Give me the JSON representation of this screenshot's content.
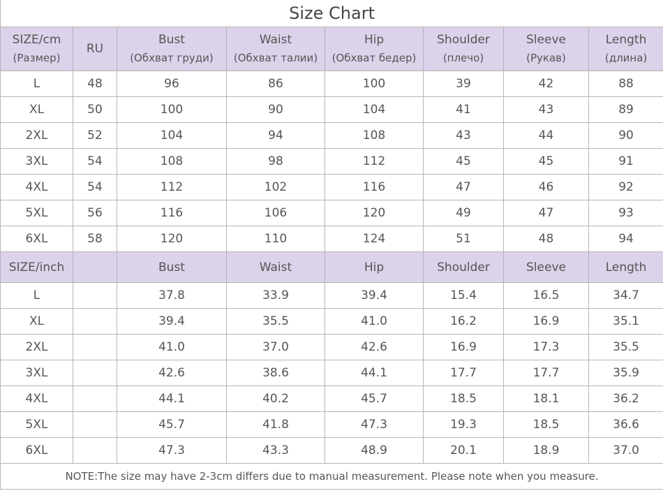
{
  "title": "Size Chart",
  "cm_table": {
    "header": [
      {
        "label": "SIZE/cm",
        "sub": "(Размер)"
      },
      {
        "label": "RU"
      },
      {
        "label": "Bust",
        "sub": "(Обхват груди)"
      },
      {
        "label": "Waist",
        "sub": "(Обхват талии)"
      },
      {
        "label": "Hip",
        "sub": "(Обхват бедер)"
      },
      {
        "label": "Shoulder",
        "sub": "(плечо)"
      },
      {
        "label": "Sleeve",
        "sub": "(Рукав)"
      },
      {
        "label": "Length",
        "sub": "(длина)"
      }
    ],
    "rows": [
      [
        "L",
        "48",
        "96",
        "86",
        "100",
        "39",
        "42",
        "88"
      ],
      [
        "XL",
        "50",
        "100",
        "90",
        "104",
        "41",
        "43",
        "89"
      ],
      [
        "2XL",
        "52",
        "104",
        "94",
        "108",
        "43",
        "44",
        "90"
      ],
      [
        "3XL",
        "54",
        "108",
        "98",
        "112",
        "45",
        "45",
        "91"
      ],
      [
        "4XL",
        "54",
        "112",
        "102",
        "116",
        "47",
        "46",
        "92"
      ],
      [
        "5XL",
        "56",
        "116",
        "106",
        "120",
        "49",
        "47",
        "93"
      ],
      [
        "6XL",
        "58",
        "120",
        "110",
        "124",
        "51",
        "48",
        "94"
      ]
    ]
  },
  "inch_table": {
    "header": [
      "SIZE/inch",
      "Bust",
      "Waist",
      "Hip",
      "Shoulder",
      "Sleeve",
      "Length"
    ],
    "rows": [
      [
        "L",
        "37.8",
        "33.9",
        "39.4",
        "15.4",
        "16.5",
        "34.7"
      ],
      [
        "XL",
        "39.4",
        "35.5",
        "41.0",
        "16.2",
        "16.9",
        "35.1"
      ],
      [
        "2XL",
        "41.0",
        "37.0",
        "42.6",
        "16.9",
        "17.3",
        "35.5"
      ],
      [
        "3XL",
        "42.6",
        "38.6",
        "44.1",
        "17.7",
        "17.7",
        "35.9"
      ],
      [
        "4XL",
        "44.1",
        "40.2",
        "45.7",
        "18.5",
        "18.1",
        "36.2"
      ],
      [
        "5XL",
        "45.7",
        "41.8",
        "47.3",
        "19.3",
        "18.5",
        "36.6"
      ],
      [
        "6XL",
        "47.3",
        "43.3",
        "48.9",
        "20.1",
        "18.9",
        "37.0"
      ]
    ]
  },
  "note": "NOTE:The size may have 2-3cm differs due to manual measurement. Please note when you measure."
}
